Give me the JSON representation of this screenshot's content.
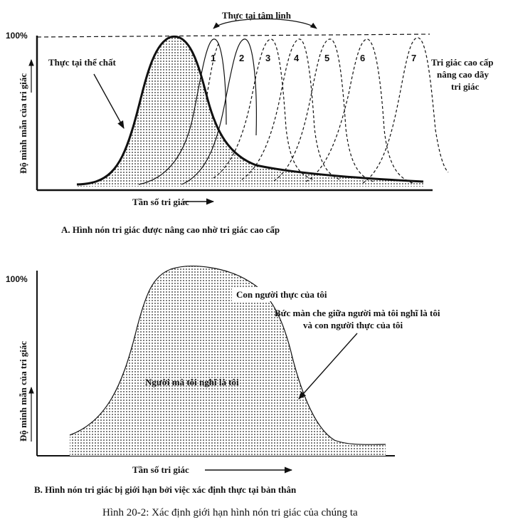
{
  "panel_a": {
    "top_label": "Thực tại tâm linh",
    "hundred": "100%",
    "ylabel": "Độ mình mẫn của tri giác",
    "physical_label": "Thực tại thể chất",
    "cone_numbers": [
      "1",
      "2",
      "3",
      "4",
      "5",
      "6",
      "7"
    ],
    "right_label": [
      "Tri giác cao cấp",
      "nâng cao dãy",
      "tri giác"
    ],
    "xlabel": "Tần số tri giác",
    "caption": "A. Hình nón tri giác được nâng cao nhờ tri giác cao cấp"
  },
  "panel_b": {
    "hundred": "100%",
    "ylabel": "Độ minh mẫn của tri giác",
    "true_self": "Con người thực của tôi",
    "screen_label": [
      "Bức màn che giữa người mà tôi nghĩ là tôi",
      "và con người thực của tôi"
    ],
    "thought_self": "Người mà tôi nghĩ là tôi",
    "xlabel": "Tần số tri giác",
    "caption": "B. Hình nón tri giác bị giới hạn bởi việc xác định thực tại bản thân"
  },
  "figure_caption": "Hình 20-2: Xác định giới hạn hình nón tri giác của chúng ta"
}
